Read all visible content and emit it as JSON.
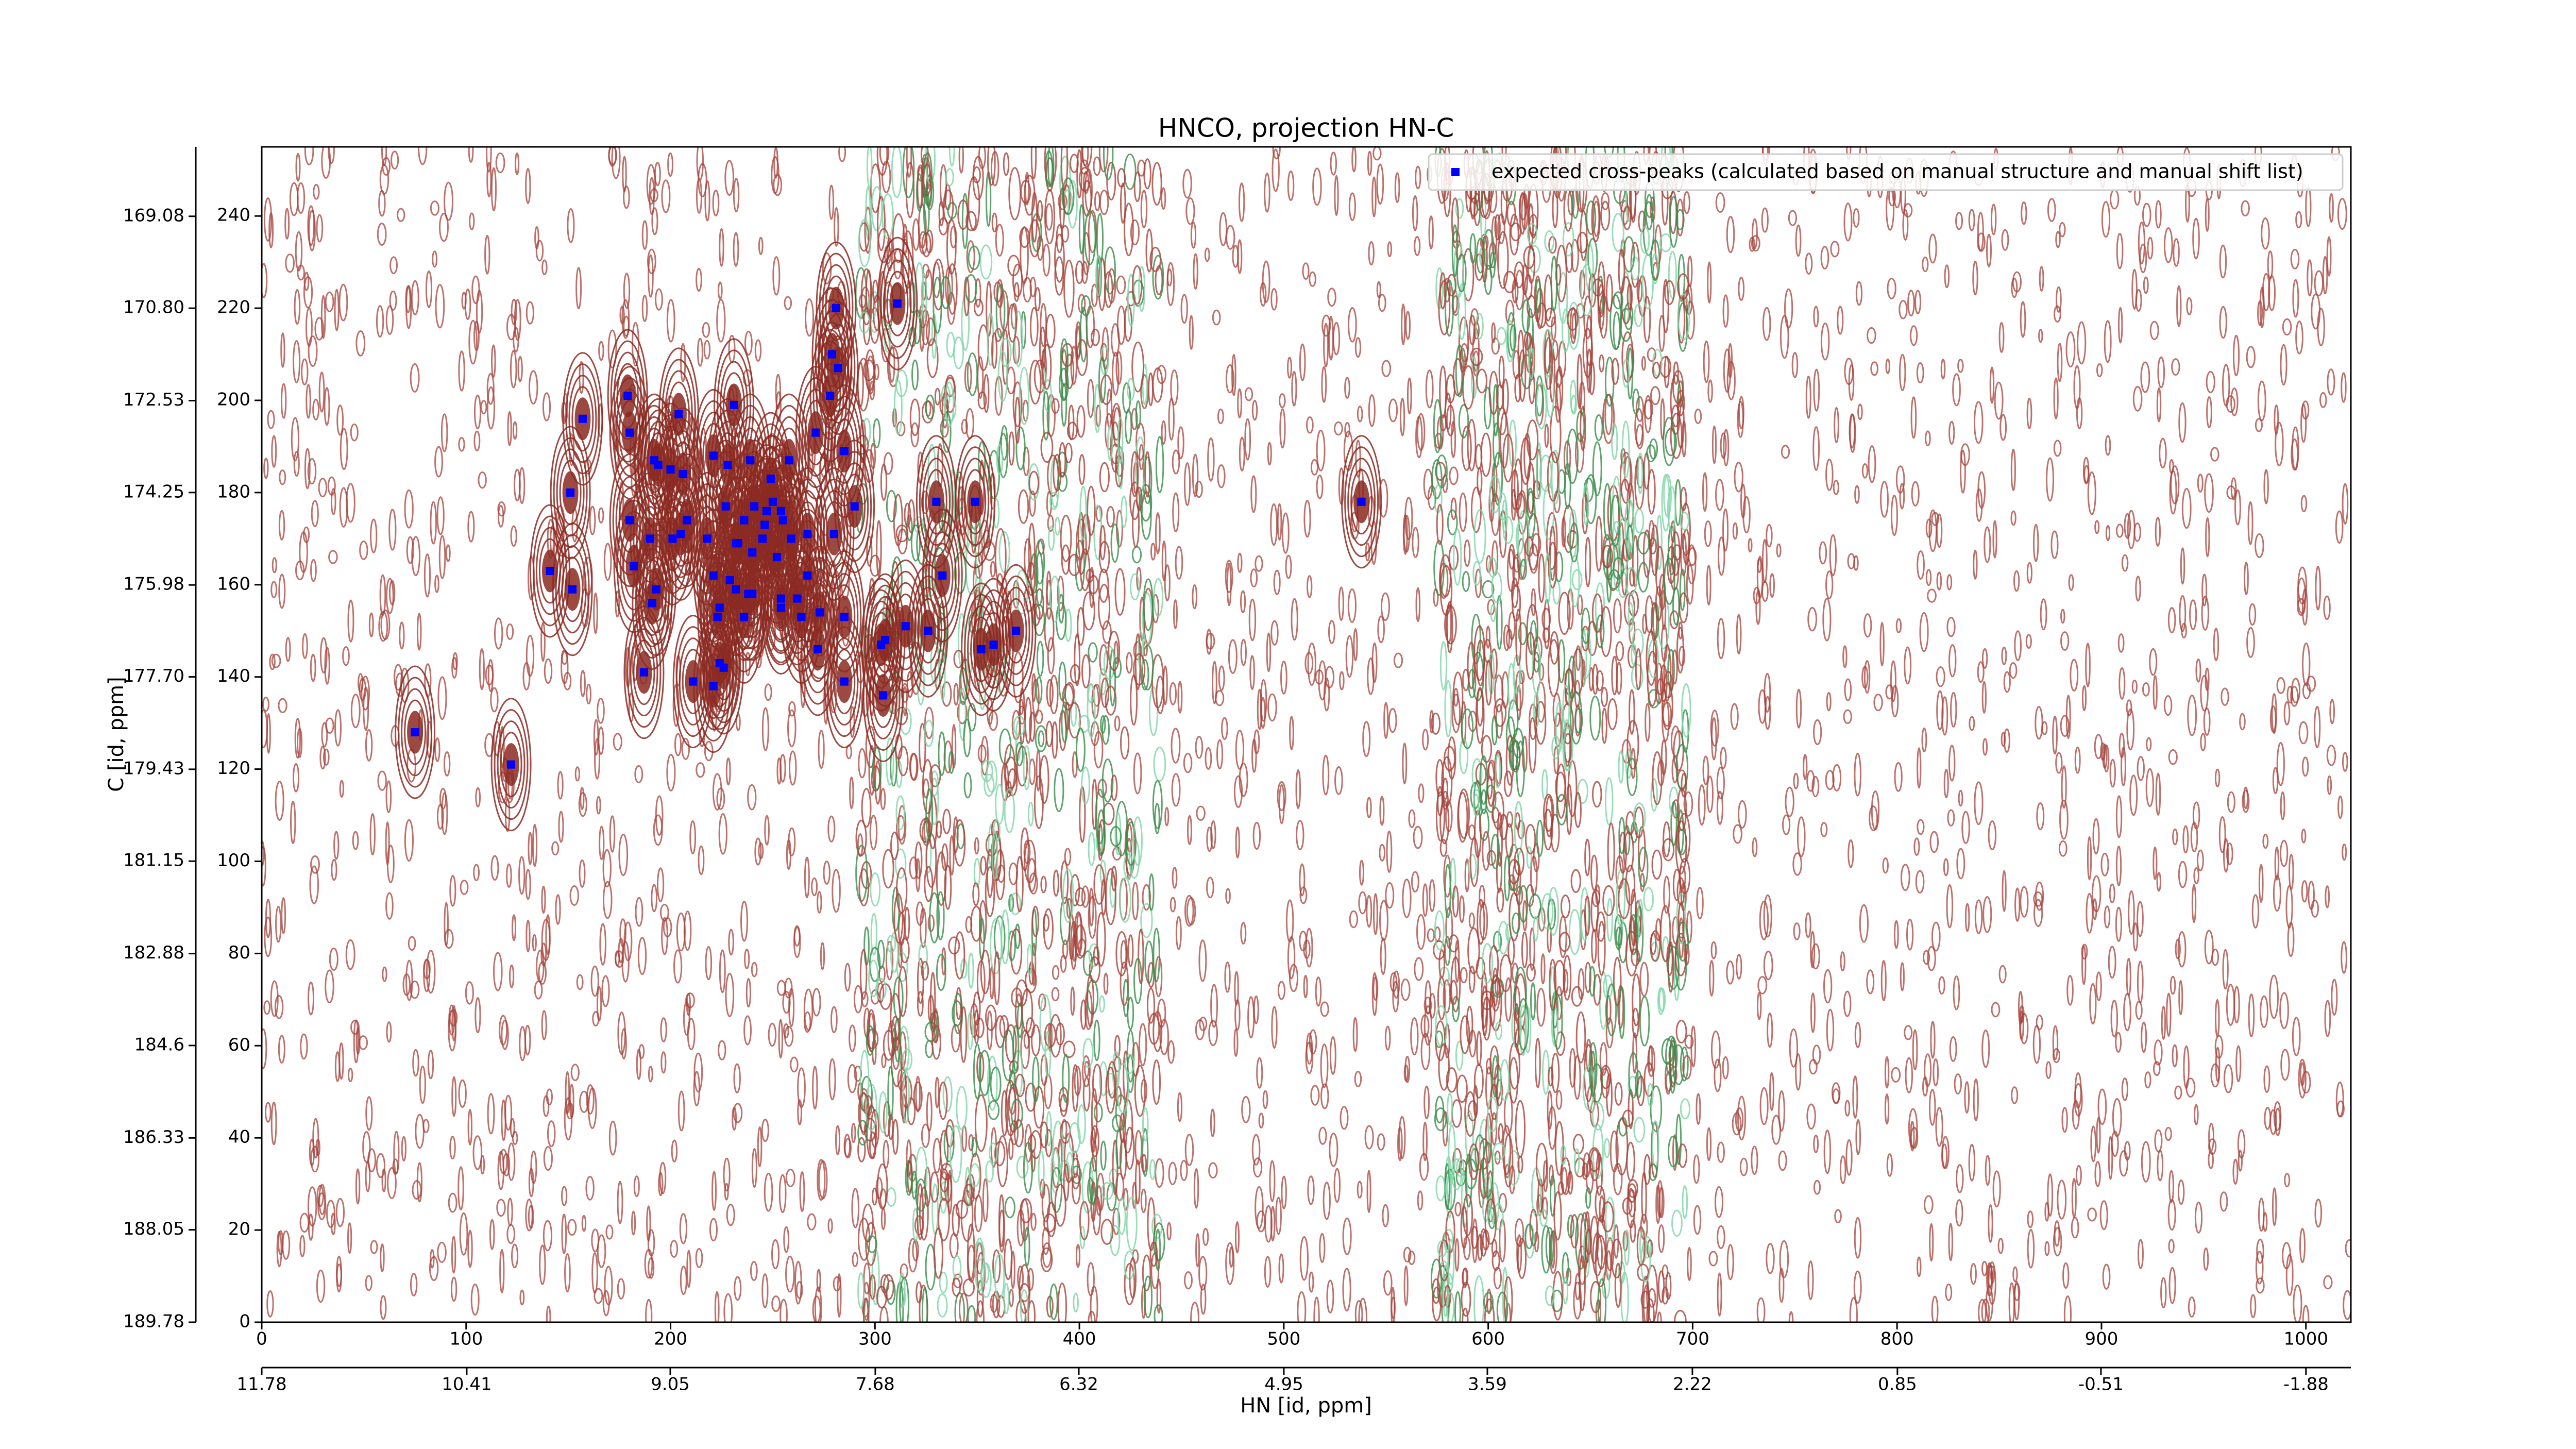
{
  "chart_data": {
    "type": "scatter",
    "title": "HNCO, projection HN-C",
    "x_label": "HN [id, ppm]",
    "y_label": "C [id, ppm]",
    "xlim": [
      0,
      1022
    ],
    "ylim": [
      0,
      255
    ],
    "xticks": [
      0,
      100,
      200,
      300,
      400,
      500,
      600,
      700,
      800,
      900,
      1000
    ],
    "yticks": [
      0,
      20,
      40,
      60,
      80,
      100,
      120,
      140,
      160,
      180,
      200,
      220,
      240
    ],
    "x2lim": [
      11.78,
      -2.18
    ],
    "x2ticks": [
      11.78,
      10.41,
      9.05,
      7.68,
      6.32,
      4.95,
      3.59,
      2.22,
      0.85,
      -0.51,
      -1.88
    ],
    "y2lim": [
      189.78,
      167.78
    ],
    "y2ticks": [
      169.08,
      {
        "value": 170.8,
        "label": "170.80"
      },
      172.53,
      174.25,
      175.98,
      {
        "value": 177.7,
        "label": "177.70"
      },
      179.43,
      181.15,
      182.88,
      184.6,
      186.33,
      188.05,
      189.78
    ],
    "legend": "upper right",
    "series": [
      {
        "name": "expected cross-peaks (calculated based on manual structure and manual shift list)",
        "color": "#0000ff",
        "x": [
          75,
          122,
          157,
          151,
          141,
          152,
          179,
          180,
          180,
          182,
          187,
          190,
          192,
          194,
          191,
          193,
          200,
          204,
          201,
          205,
          208,
          206,
          211,
          218,
          221,
          221,
          221,
          223,
          224,
          224,
          226,
          227,
          228,
          229,
          231,
          232,
          233,
          232,
          236,
          236,
          238,
          239,
          240,
          240,
          241,
          245,
          246,
          247,
          249,
          250,
          252,
          254,
          255,
          254,
          254,
          258,
          259,
          262,
          264,
          267,
          267,
          271,
          272,
          273,
          278,
          279,
          280,
          281,
          282,
          285,
          285,
          285,
          290,
          303,
          305,
          304,
          311,
          315,
          326,
          330,
          333,
          349,
          352,
          358,
          369,
          538
        ],
        "values": [
          128,
          121,
          196,
          180,
          163,
          159,
          201,
          193,
          174,
          164,
          141,
          170,
          187,
          186,
          156,
          159,
          185,
          197,
          170,
          171,
          174,
          184,
          139,
          170,
          188,
          162,
          138,
          153,
          155,
          143,
          142,
          177,
          186,
          161,
          199,
          169,
          169,
          159,
          153,
          174,
          158,
          187,
          167,
          158,
          177,
          170,
          173,
          176,
          183,
          178,
          166,
          176,
          174,
          157,
          155,
          187,
          170,
          157,
          153,
          171,
          162,
          193,
          146,
          154,
          201,
          210,
          171,
          220,
          207,
          189,
          153,
          139,
          177,
          147,
          148,
          136,
          221,
          151,
          150,
          178,
          162,
          178,
          146,
          147,
          150,
          178
        ]
      }
    ]
  }
}
